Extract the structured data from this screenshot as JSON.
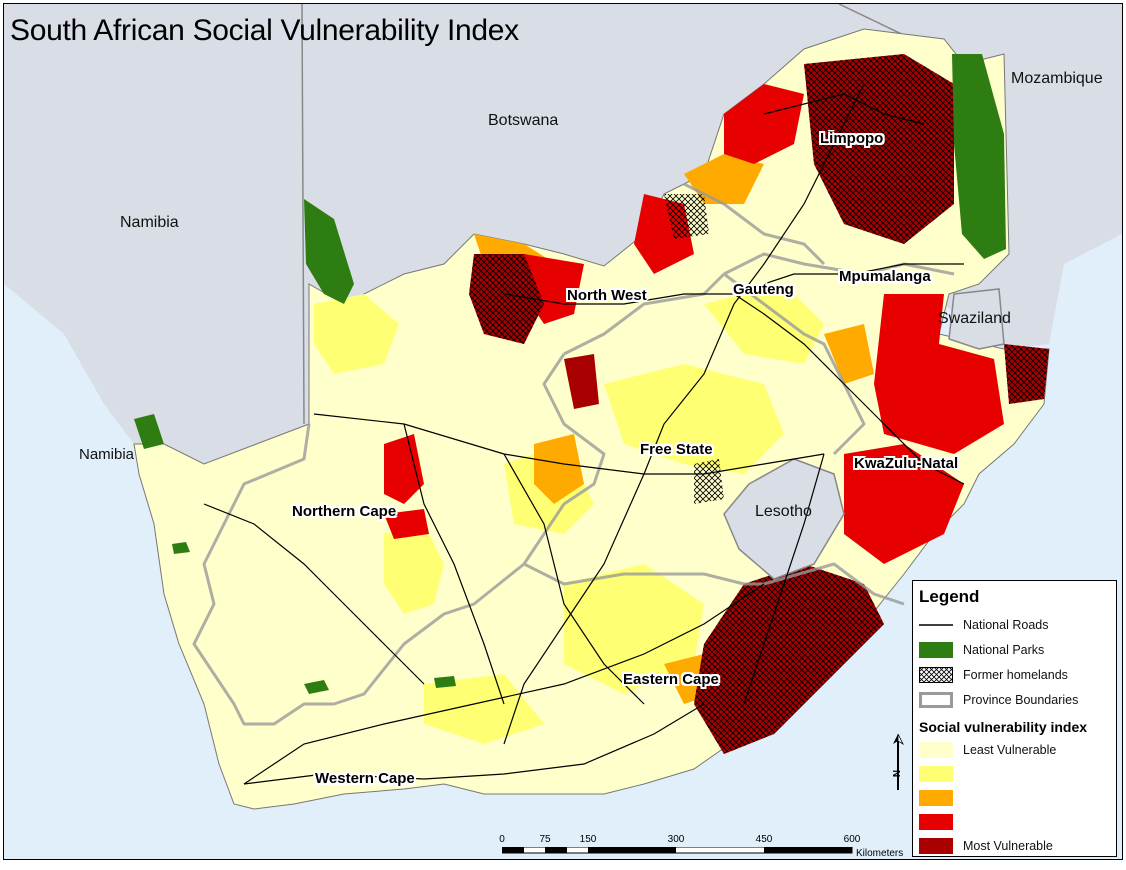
{
  "title": "South African Social Vulnerability Index",
  "countries": [
    {
      "name": "Namibia",
      "key": "namibia_north"
    },
    {
      "name": "Namibia",
      "key": "namibia_south"
    },
    {
      "name": "Botswana",
      "key": "botswana"
    },
    {
      "name": "Mozambique",
      "key": "mozambique"
    },
    {
      "name": "Swaziland",
      "key": "swaziland"
    },
    {
      "name": "Lesotho",
      "key": "lesotho"
    }
  ],
  "provinces": [
    "Limpopo",
    "Mpumalanga",
    "Gauteng",
    "North West",
    "Free State",
    "KwaZulu-Natal",
    "Northern Cape",
    "Eastern Cape",
    "Western Cape"
  ],
  "legend": {
    "title": "Legend",
    "items": [
      {
        "label": "National Roads",
        "symbol": "line",
        "color": "#000000"
      },
      {
        "label": "National Parks",
        "symbol": "fill",
        "color": "#2e7d12"
      },
      {
        "label": "Former homelands",
        "symbol": "crosshatch",
        "color": "#000000"
      },
      {
        "label": "Province Boundaries",
        "symbol": "boundary",
        "color": "#9a9a9a"
      }
    ],
    "svi_title": "Social vulnerability index",
    "svi_classes": [
      {
        "label": "Least Vulnerable",
        "color": "#ffffcc"
      },
      {
        "label": "",
        "color": "#ffff73"
      },
      {
        "label": "",
        "color": "#ffaa00"
      },
      {
        "label": "",
        "color": "#e60000"
      },
      {
        "label": "Most Vulnerable",
        "color": "#a80000"
      }
    ]
  },
  "scale_bar": {
    "ticks": [
      "0",
      "75",
      "150",
      "300",
      "450",
      "600"
    ],
    "unit": "Kilometers"
  },
  "north_arrow": {
    "label": "N"
  },
  "colors": {
    "sea": "#e0effa",
    "neighbour_land": "#d9dde6",
    "national_park": "#2e7d12"
  }
}
